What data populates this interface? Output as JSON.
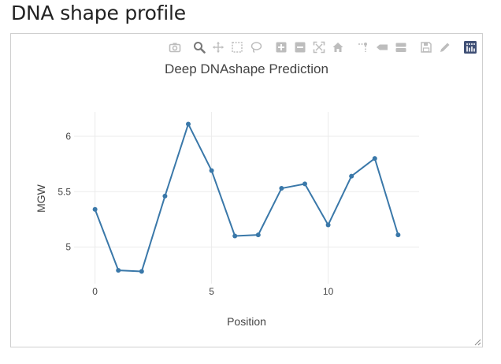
{
  "page": {
    "title": "DNA shape profile"
  },
  "modebar": {
    "buttons": [
      {
        "name": "camera-icon",
        "title": "Download plot as a png",
        "active": false
      },
      {
        "name": "zoom-icon",
        "title": "Zoom",
        "active": true
      },
      {
        "name": "pan-icon",
        "title": "Pan",
        "active": false
      },
      {
        "name": "box-select-icon",
        "title": "Box Select",
        "active": false
      },
      {
        "name": "lasso-select-icon",
        "title": "Lasso Select",
        "active": false
      },
      {
        "name": "zoom-in-icon",
        "title": "Zoom in",
        "active": false
      },
      {
        "name": "zoom-out-icon",
        "title": "Zoom out",
        "active": false
      },
      {
        "name": "autoscale-icon",
        "title": "Autoscale",
        "active": false
      },
      {
        "name": "home-icon",
        "title": "Reset axes",
        "active": false
      },
      {
        "name": "spike-lines-icon",
        "title": "Toggle Spike Lines",
        "active": false
      },
      {
        "name": "hover-closest-icon",
        "title": "Show closest data on hover",
        "active": false
      },
      {
        "name": "hover-compare-icon",
        "title": "Compare data on hover",
        "active": false
      },
      {
        "name": "save-icon",
        "title": "Save",
        "active": false
      },
      {
        "name": "edit-icon",
        "title": "Edit in Chart Studio",
        "active": false
      },
      {
        "name": "plotly-logo-icon",
        "title": "Produced with Plotly",
        "active": false
      }
    ]
  },
  "colors": {
    "line": "#3a78a9",
    "grid": "#ebebeb",
    "text": "#444444",
    "modebar_icon": "#bdbdbd",
    "modebar_active": "#777777",
    "logo_bg": "#3f4f75"
  },
  "chart_data": {
    "type": "line",
    "title": "Deep DNAshape Prediction",
    "xlabel": "Position",
    "ylabel": "MGW",
    "x": [
      0,
      1,
      2,
      3,
      4,
      5,
      6,
      7,
      8,
      9,
      10,
      11,
      12,
      13
    ],
    "series": [
      {
        "values": [
          5.34,
          4.79,
          4.78,
          5.46,
          6.11,
          5.69,
          5.1,
          5.11,
          5.53,
          5.57,
          5.2,
          5.64,
          5.8,
          5.11
        ]
      }
    ],
    "xlim": [
      -0.9,
      13.9
    ],
    "ylim": [
      4.67,
      6.22
    ],
    "xticks": [
      0,
      5,
      10
    ],
    "xtick_labels": [
      "0",
      "5",
      "10"
    ],
    "yticks": [
      5,
      5.5,
      6
    ],
    "ytick_labels": [
      "5",
      "5.5",
      "6"
    ],
    "grid": true,
    "legend": "none"
  }
}
